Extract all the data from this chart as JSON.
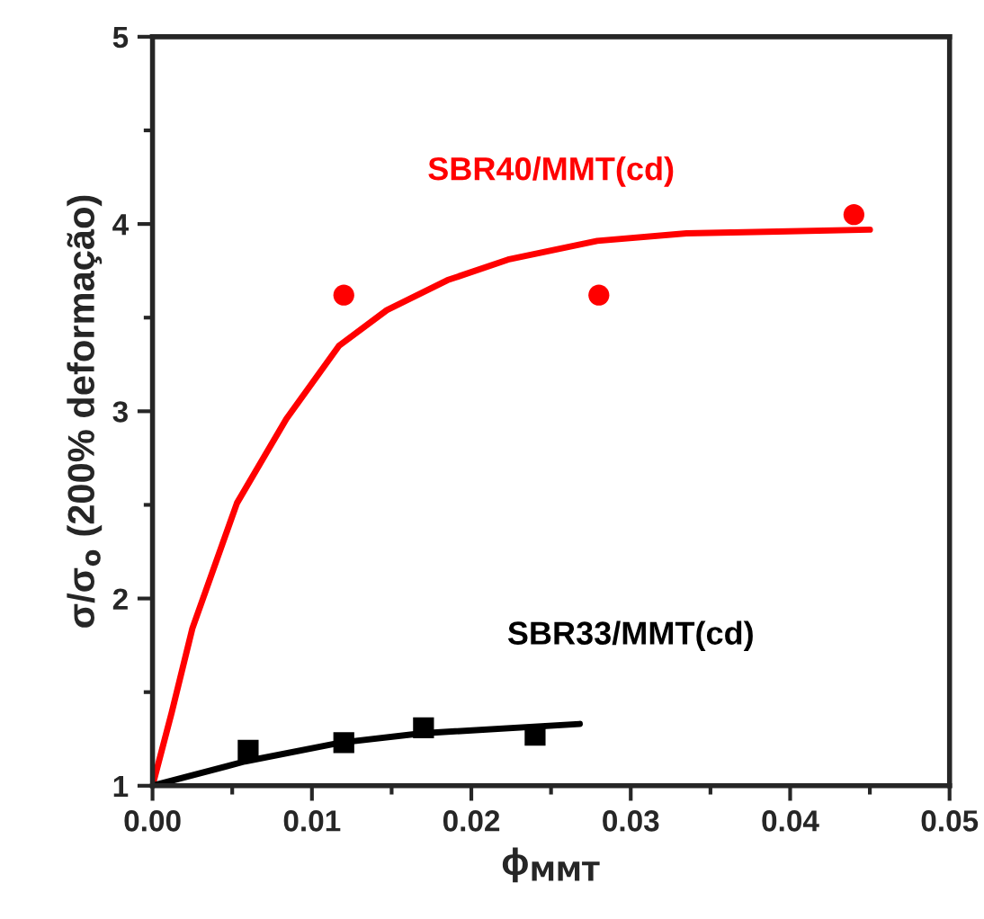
{
  "chart_data": {
    "type": "scatter",
    "xlabel": "ϕ$_{MMT}$",
    "ylabel": "σ/σ$_{o}$ (200% deformação)",
    "xlim": [
      0,
      0.05
    ],
    "xticks": [
      {
        "value": 0,
        "label": "0.00"
      },
      {
        "value": 0.01,
        "label": "0.01"
      },
      {
        "value": 0.02,
        "label": "0.02"
      },
      {
        "value": 0.03,
        "label": "0.03"
      },
      {
        "value": 0.04,
        "label": "0.04"
      },
      {
        "value": 0.05,
        "label": "0.05"
      }
    ],
    "ylim": [
      1,
      5
    ],
    "yticks": [
      1,
      2,
      3,
      4,
      5
    ],
    "grid": false,
    "legend": false,
    "series": [
      {
        "name": "SBR40/MMT(cd)",
        "marker": "circle",
        "color": "#ff0000",
        "x": [
          0.012,
          0.028,
          0.044
        ],
        "values": [
          3.62,
          3.62,
          4.05
        ]
      },
      {
        "name": "SBR33/MMT(cd)",
        "marker": "square",
        "color": "#000000",
        "x": [
          0.006,
          0.012,
          0.017,
          0.024
        ],
        "values": [
          1.19,
          1.23,
          1.31,
          1.27
        ]
      },
      {
        "type": "line",
        "marker": "none",
        "color": "#ff0000",
        "x": [
          0,
          0.0012,
          0.0025,
          0.0053,
          0.0084,
          0.0117,
          0.0147,
          0.0185,
          0.0223,
          0.0279,
          0.0335,
          0.0392,
          0.045
        ],
        "values": [
          1,
          1.39,
          1.84,
          2.51,
          2.96,
          3.35,
          3.54,
          3.7,
          3.81,
          3.91,
          3.95,
          3.96,
          3.97
        ]
      },
      {
        "type": "line",
        "marker": "none",
        "color": "#000000",
        "x": [
          0,
          0.0058,
          0.0118,
          0.0169,
          0.0268
        ],
        "values": [
          1,
          1.13,
          1.23,
          1.28,
          1.33
        ]
      }
    ]
  }
}
